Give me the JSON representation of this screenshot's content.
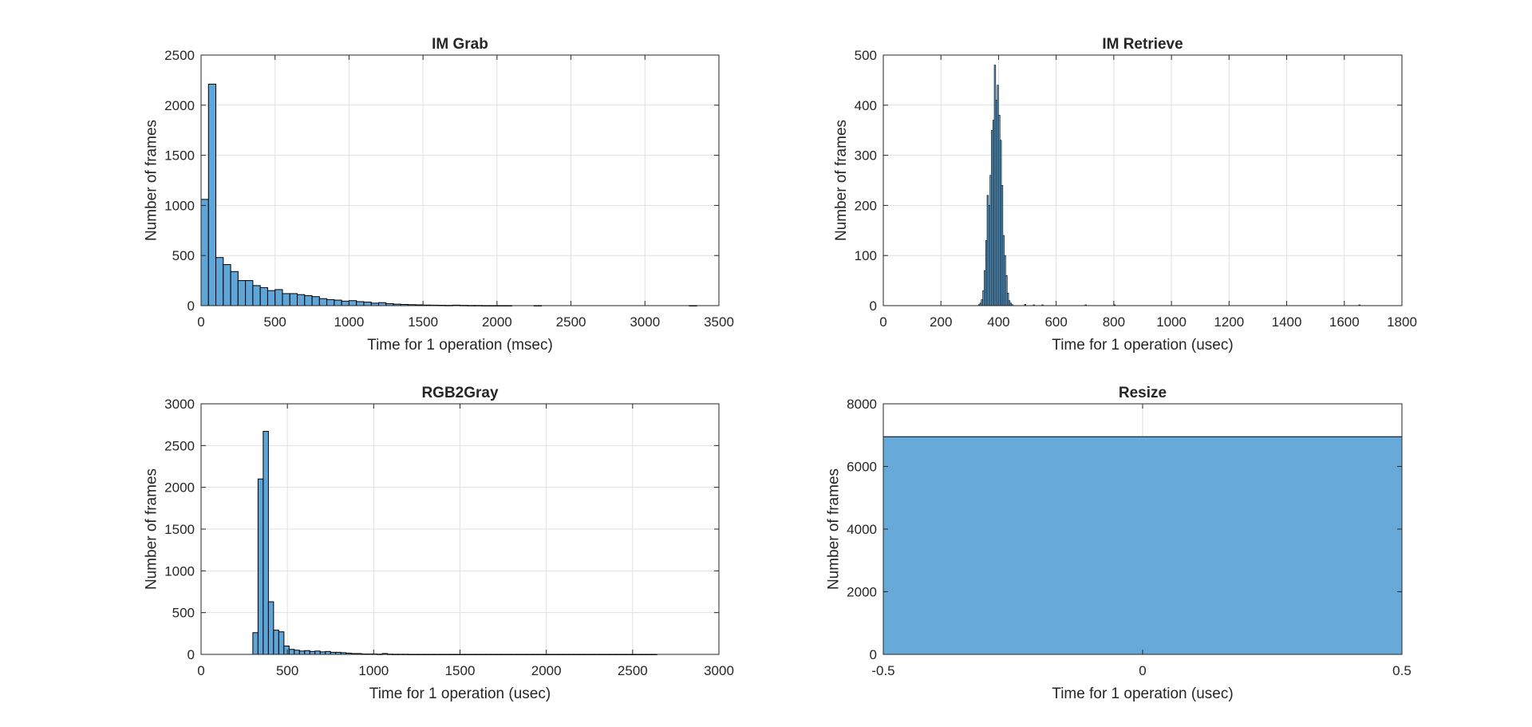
{
  "chart_data": [
    {
      "type": "bar",
      "title": "IM Grab",
      "xlabel": "Time for 1 operation (msec)",
      "ylabel": "Number of frames",
      "xlim": [
        0,
        3500
      ],
      "ylim": [
        0,
        2500
      ],
      "xticks": [
        0,
        500,
        1000,
        1500,
        2000,
        2500,
        3000,
        3500
      ],
      "yticks": [
        0,
        500,
        1000,
        1500,
        2000,
        2500
      ],
      "grid": true,
      "bin_width": 50,
      "bin_start": 0,
      "values": [
        1060,
        2210,
        480,
        410,
        340,
        250,
        250,
        200,
        180,
        150,
        160,
        120,
        120,
        110,
        100,
        90,
        70,
        60,
        55,
        45,
        50,
        40,
        35,
        25,
        30,
        20,
        15,
        12,
        10,
        8,
        6,
        5,
        4,
        3,
        5,
        3,
        2,
        2,
        1,
        1,
        1,
        1,
        0,
        0,
        0,
        1,
        0,
        0,
        0,
        0,
        0,
        0,
        0,
        0,
        0,
        0,
        0,
        0,
        0,
        0,
        0,
        0,
        0,
        0,
        0,
        0,
        1
      ]
    },
    {
      "type": "bar",
      "title": "IM Retrieve",
      "xlabel": "Time for 1 operation (usec)",
      "ylabel": "Number of frames",
      "xlim": [
        0,
        1800
      ],
      "ylim": [
        0,
        500
      ],
      "xticks": [
        0,
        200,
        400,
        600,
        800,
        1000,
        1200,
        1400,
        1600,
        1800
      ],
      "yticks": [
        0,
        100,
        200,
        300,
        400,
        500
      ],
      "grid": true,
      "bin_width": 5,
      "bin_start": 330,
      "values": [
        2,
        5,
        12,
        30,
        70,
        130,
        220,
        200,
        260,
        350,
        370,
        480,
        410,
        440,
        380,
        330,
        240,
        140,
        100,
        60,
        25,
        10,
        5,
        2
      ],
      "tail_values": [
        [
          490,
          2
        ],
        [
          520,
          1
        ],
        [
          550,
          1
        ],
        [
          700,
          1
        ],
        [
          800,
          1
        ],
        [
          1650,
          1
        ]
      ]
    },
    {
      "type": "bar",
      "title": "RGB2Gray",
      "xlabel": "Time for 1 operation (usec)",
      "ylabel": "Number of frames",
      "xlim": [
        0,
        3000
      ],
      "ylim": [
        0,
        3000
      ],
      "xticks": [
        0,
        500,
        1000,
        1500,
        2000,
        2500,
        3000
      ],
      "yticks": [
        0,
        500,
        1000,
        1500,
        2000,
        2500,
        3000
      ],
      "grid": true,
      "bin_width": 30,
      "bin_start": 300,
      "values": [
        260,
        2100,
        2670,
        630,
        290,
        270,
        100,
        60,
        50,
        40,
        45,
        35,
        40,
        30,
        35,
        25,
        25,
        20,
        15,
        10,
        10,
        5,
        5,
        5,
        3,
        10,
        3,
        2,
        2,
        2,
        1,
        1,
        1,
        1,
        1,
        1,
        1,
        1,
        1,
        1,
        1,
        1,
        1,
        1,
        1,
        1,
        1,
        1,
        1,
        1,
        1,
        1,
        1,
        1,
        1,
        1,
        1,
        1,
        1,
        1,
        1,
        1,
        1,
        1,
        1,
        1,
        1,
        1,
        1,
        1,
        1,
        1,
        1,
        1,
        1,
        1,
        1,
        1
      ]
    },
    {
      "type": "bar",
      "title": "Resize",
      "xlabel": "Time for 1 operation (usec)",
      "ylabel": "Number of frames",
      "xlim": [
        -0.5,
        0.5
      ],
      "ylim": [
        0,
        8000
      ],
      "xticks": [
        -0.5,
        0,
        0.5
      ],
      "yticks": [
        0,
        2000,
        4000,
        6000,
        8000
      ],
      "grid": true,
      "bin_width": 1,
      "bin_start": -0.5,
      "values": [
        6950
      ]
    }
  ],
  "style": {
    "bar_fill": "#5fa5d8",
    "bar_edge": "#000000",
    "grid_color": "#e1e1e1",
    "axis_color": "#262626"
  }
}
